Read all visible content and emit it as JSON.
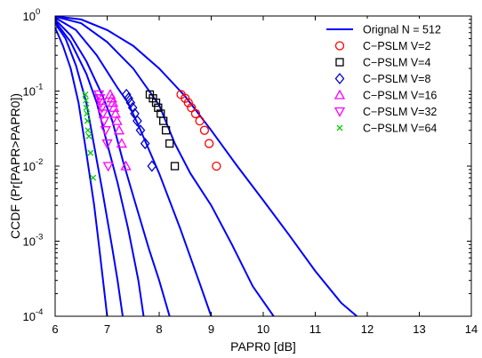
{
  "chart_data": {
    "type": "line",
    "title": "",
    "xlabel": "PAPR0 [dB]",
    "ylabel": "CCDF (Pr[PAPR>PAPR0])",
    "xlim": [
      6,
      14
    ],
    "ylim": [
      0.0001,
      1
    ],
    "yscale": "log",
    "grid": false,
    "legend_position": "top-right",
    "x_ticks": [
      6,
      7,
      8,
      9,
      10,
      11,
      12,
      13,
      14
    ],
    "y_ticks": [
      0.0001,
      0.001,
      0.01,
      0.1,
      1
    ],
    "y_tick_labels": [
      {
        "base": "10",
        "exp": "-4"
      },
      {
        "base": "10",
        "exp": "-3"
      },
      {
        "base": "10",
        "exp": "-2"
      },
      {
        "base": "10",
        "exp": "-1"
      },
      {
        "base": "10",
        "exp": "0"
      }
    ],
    "curves": [
      {
        "x": [
          6.0,
          6.5,
          7.0,
          7.5,
          8.0,
          8.5,
          9.0,
          9.5,
          10.0,
          10.5,
          11.0,
          11.5,
          11.8
        ],
        "y": [
          0.99,
          0.9,
          0.65,
          0.4,
          0.2,
          0.085,
          0.03,
          0.01,
          0.0035,
          0.0012,
          0.0004,
          0.00015,
          0.0001
        ]
      },
      {
        "x": [
          6.0,
          6.5,
          7.0,
          7.5,
          8.0,
          8.3,
          8.6,
          9.0,
          9.4,
          9.8,
          10.2
        ],
        "y": [
          0.98,
          0.8,
          0.45,
          0.2,
          0.065,
          0.02,
          0.008,
          0.003,
          0.0009,
          0.00025,
          0.0001
        ]
      },
      {
        "x": [
          6.0,
          6.4,
          6.8,
          7.2,
          7.4,
          7.6,
          8.0,
          8.4,
          8.8,
          9.0
        ],
        "y": [
          0.95,
          0.65,
          0.3,
          0.11,
          0.07,
          0.035,
          0.008,
          0.0015,
          0.00025,
          0.0001
        ]
      },
      {
        "x": [
          6.0,
          6.3,
          6.6,
          6.9,
          7.1,
          7.3,
          7.5,
          7.8,
          8.0,
          8.2
        ],
        "y": [
          0.9,
          0.55,
          0.25,
          0.09,
          0.04,
          0.012,
          0.004,
          0.0008,
          0.0003,
          0.0001
        ]
      },
      {
        "x": [
          6.0,
          6.3,
          6.6,
          6.8,
          7.0,
          7.2,
          7.4,
          7.6,
          7.7
        ],
        "y": [
          0.85,
          0.45,
          0.17,
          0.07,
          0.02,
          0.006,
          0.0015,
          0.0003,
          0.0001
        ]
      },
      {
        "x": [
          6.0,
          6.2,
          6.4,
          6.6,
          6.8,
          6.9,
          7.0,
          7.1,
          7.2,
          7.3
        ],
        "y": [
          0.8,
          0.5,
          0.22,
          0.07,
          0.012,
          0.005,
          0.002,
          0.0008,
          0.0003,
          0.0001
        ]
      },
      {
        "x": [
          6.0,
          6.15,
          6.3,
          6.45,
          6.6,
          6.75,
          6.85,
          6.95,
          7.0
        ],
        "y": [
          0.7,
          0.4,
          0.2,
          0.07,
          0.015,
          0.003,
          0.0008,
          0.0002,
          0.0001
        ]
      }
    ],
    "series": [
      {
        "name": "Orignal  N = 512",
        "marker": "line",
        "color": "#0000ff",
        "x": [],
        "y": []
      },
      {
        "name": "C−PSLM V=2",
        "marker": "circle",
        "color": "#ff0000",
        "x": [
          8.42,
          8.5,
          8.56,
          8.62,
          8.7,
          8.78,
          8.87,
          8.96,
          9.1
        ],
        "y": [
          0.09,
          0.08,
          0.07,
          0.06,
          0.05,
          0.04,
          0.03,
          0.02,
          0.01
        ]
      },
      {
        "name": "C−PSLM V=4",
        "marker": "square",
        "color": "#000000",
        "x": [
          7.82,
          7.88,
          7.94,
          7.98,
          8.03,
          8.08,
          8.13,
          8.2,
          8.3
        ],
        "y": [
          0.09,
          0.08,
          0.07,
          0.06,
          0.05,
          0.04,
          0.03,
          0.02,
          0.01
        ]
      },
      {
        "name": "C−PSLM V=8",
        "marker": "diamond",
        "color": "#0000cc",
        "x": [
          7.37,
          7.41,
          7.45,
          7.49,
          7.53,
          7.58,
          7.64,
          7.73,
          7.86
        ],
        "y": [
          0.09,
          0.08,
          0.07,
          0.06,
          0.05,
          0.04,
          0.03,
          0.02,
          0.01
        ]
      },
      {
        "name": "C−PSLM V=16",
        "marker": "triangle-up",
        "color": "#ff00ff",
        "x": [
          7.06,
          7.09,
          7.11,
          7.13,
          7.16,
          7.19,
          7.23,
          7.28,
          7.36
        ],
        "y": [
          0.09,
          0.08,
          0.07,
          0.06,
          0.05,
          0.04,
          0.03,
          0.02,
          0.01
        ]
      },
      {
        "name": "C−PSLM V=32",
        "marker": "triangle-down",
        "color": "#ff00ff",
        "x": [
          6.84,
          6.86,
          6.88,
          6.9,
          6.92,
          6.94,
          6.97,
          7.0,
          7.02
        ],
        "y": [
          0.09,
          0.08,
          0.07,
          0.06,
          0.05,
          0.04,
          0.03,
          0.02,
          0.01
        ]
      },
      {
        "name": "C−PSLM V=64",
        "marker": "x",
        "color": "#00cc00",
        "x": [
          6.58,
          6.59,
          6.6,
          6.61,
          6.62,
          6.63,
          6.65,
          6.68,
          6.73
        ],
        "y": [
          0.09,
          0.075,
          0.06,
          0.05,
          0.04,
          0.03,
          0.025,
          0.015,
          0.007
        ]
      }
    ]
  }
}
